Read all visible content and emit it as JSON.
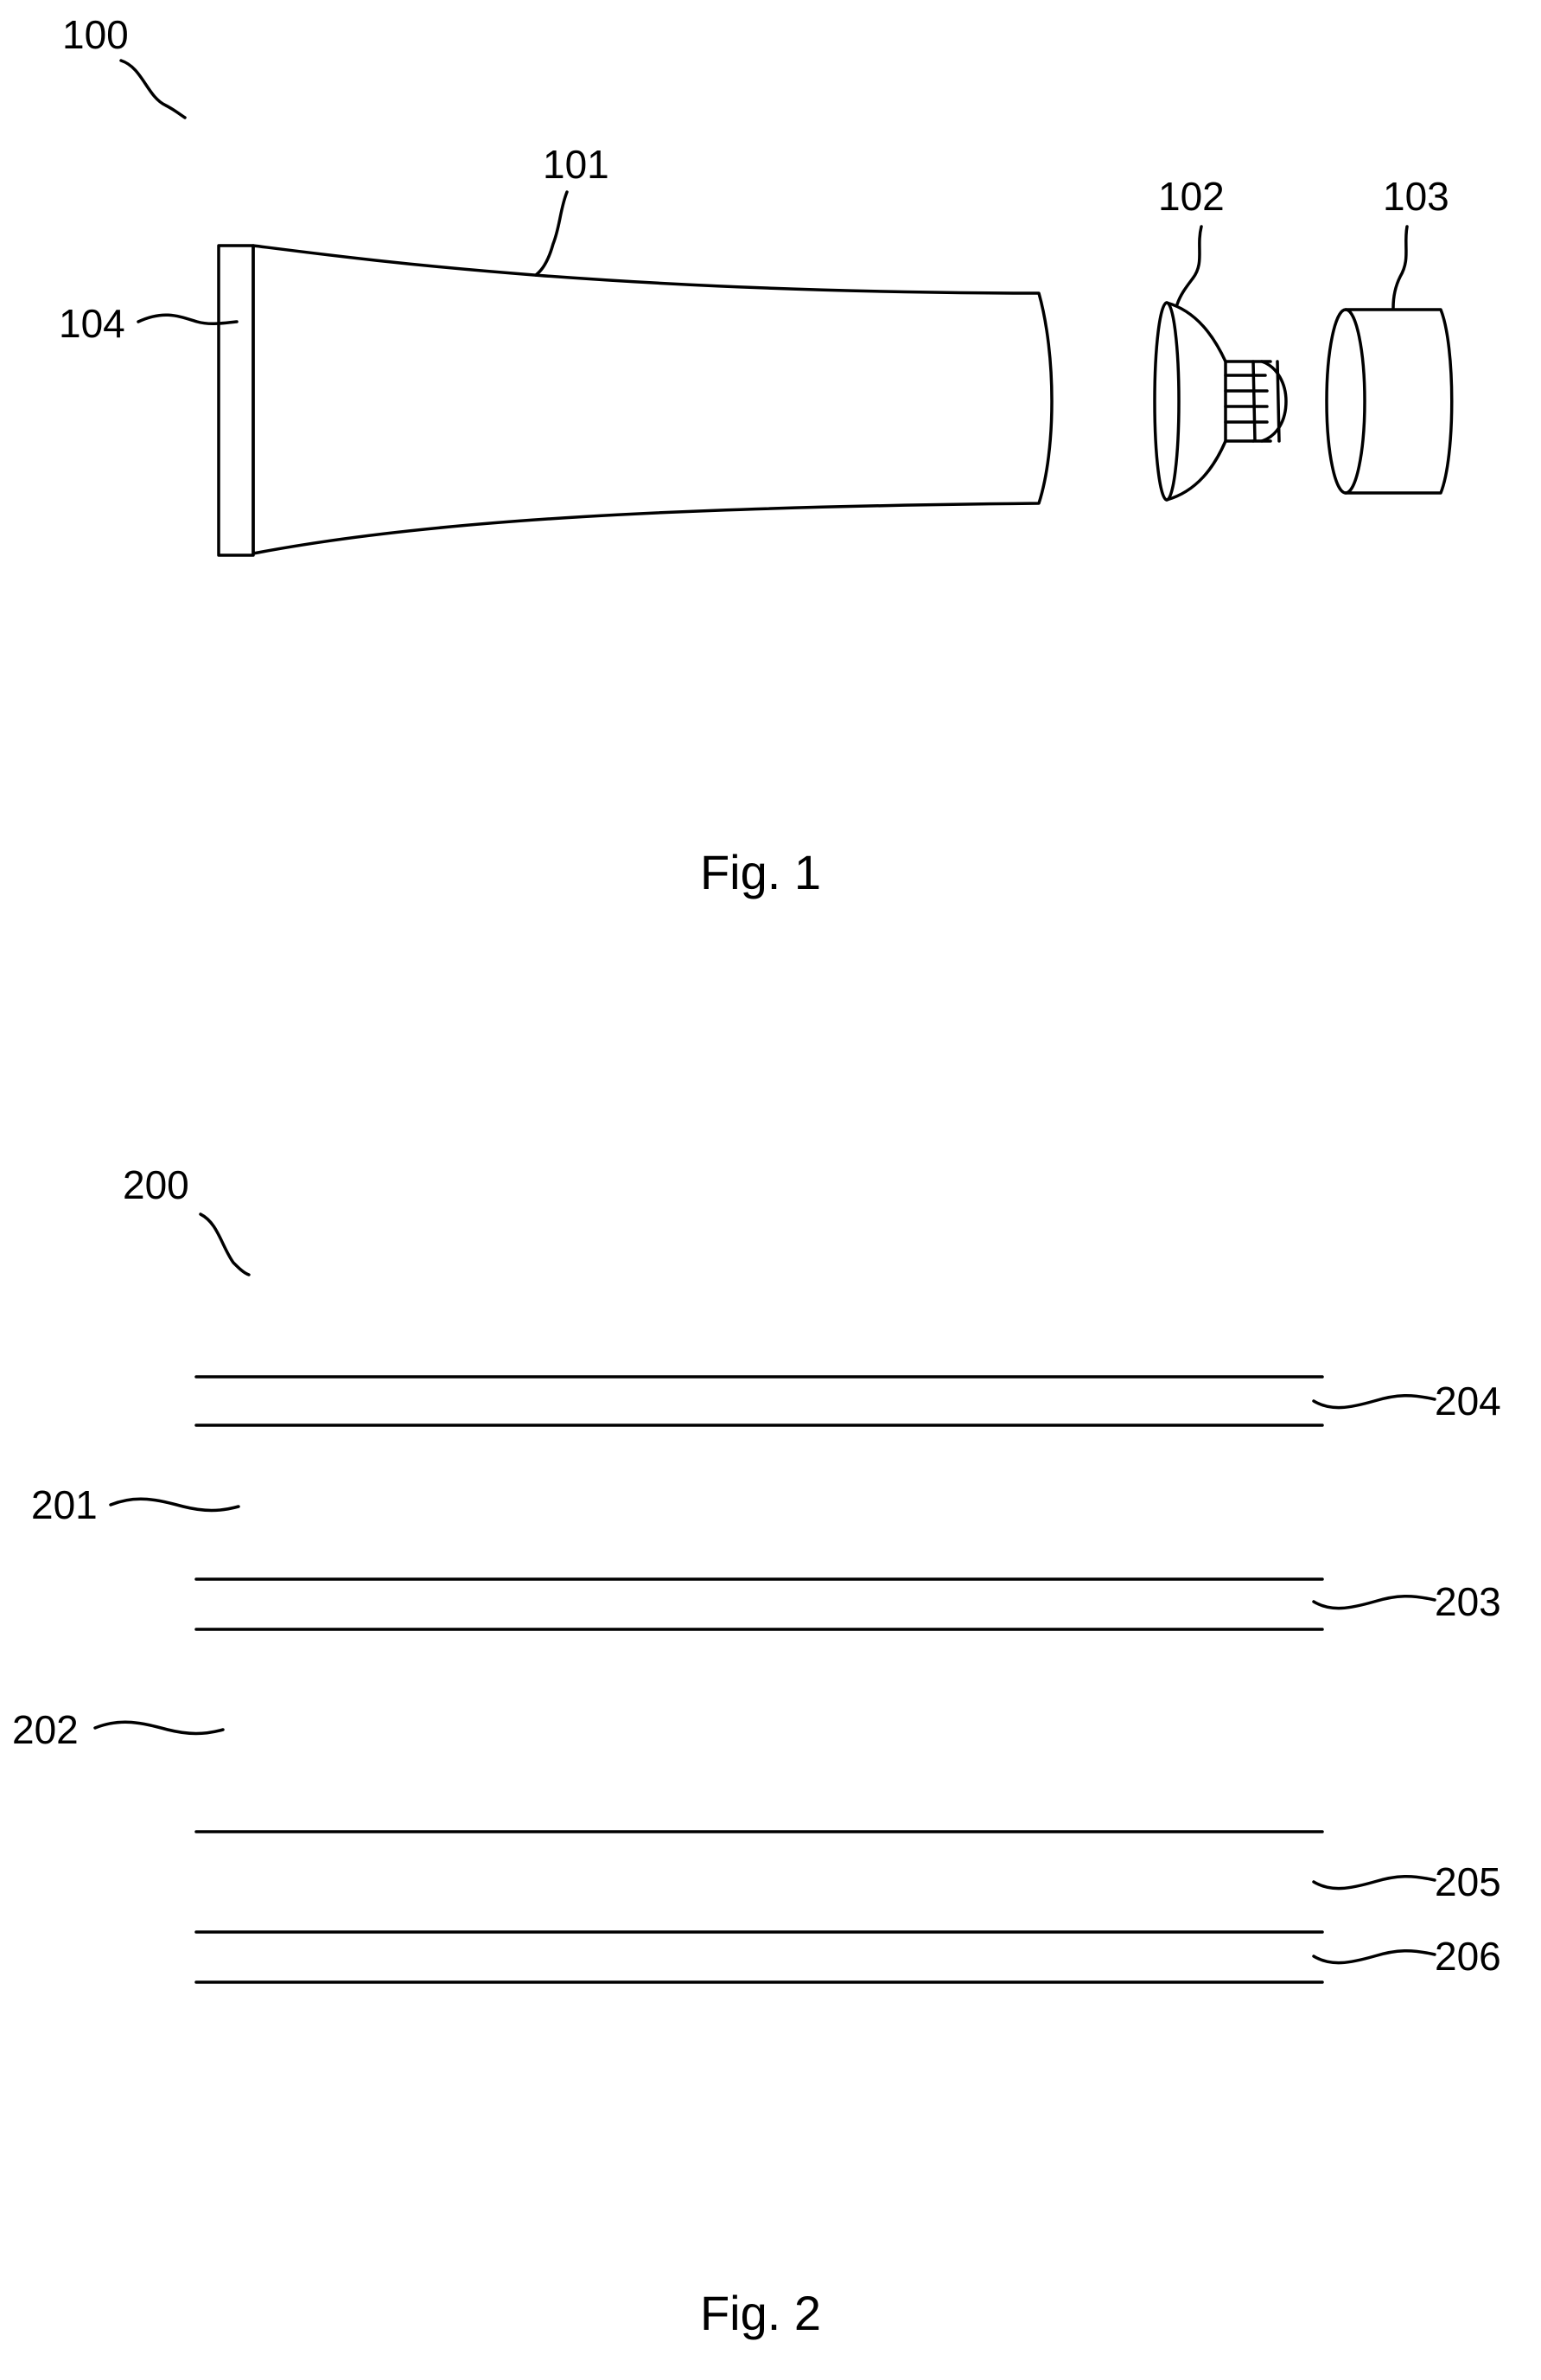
{
  "figure1": {
    "caption": "Fig. 1",
    "labels": {
      "assembly": "100",
      "tube_body": "101",
      "nozzle": "102",
      "cap": "103",
      "end_seal": "104"
    }
  },
  "figure2": {
    "caption": "Fig. 2",
    "labels": {
      "laminate": "200",
      "layer_201": "201",
      "layer_202": "202",
      "layer_203": "203",
      "layer_204": "204",
      "layer_205": "205",
      "layer_206": "206"
    }
  }
}
